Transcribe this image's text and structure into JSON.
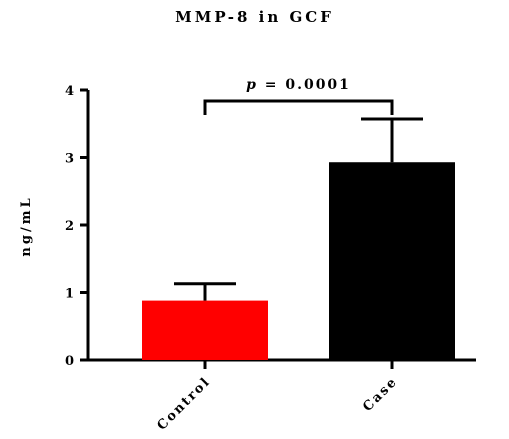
{
  "chart_data": {
    "type": "bar",
    "title": "MMP-8 in GCF",
    "xlabel": "",
    "ylabel": "ng/mL",
    "categories": [
      "Control",
      "Case"
    ],
    "values": [
      0.88,
      2.93
    ],
    "error_upper": [
      1.13,
      3.57
    ],
    "bar_colors": [
      "#ff0000",
      "#000000"
    ],
    "ylim": [
      0,
      4
    ],
    "yticks": [
      0,
      1,
      2,
      3,
      4
    ],
    "ytick_labels": [
      "0",
      "1",
      "2",
      "3",
      "4"
    ],
    "annotation": {
      "prefix": "p",
      "text": " = 0.0001"
    },
    "grid": false,
    "legend": "none"
  }
}
